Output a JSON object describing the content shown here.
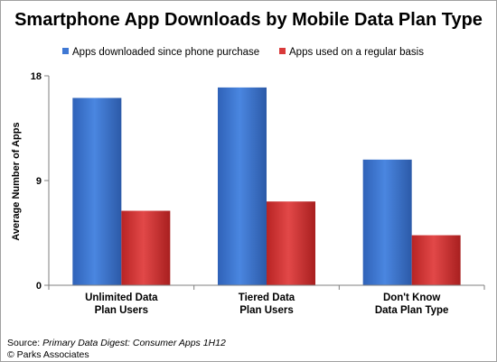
{
  "chart_data": {
    "type": "bar",
    "title": "Smartphone App Downloads by Mobile Data Plan Type",
    "xlabel": "",
    "ylabel": "Average Number of Apps",
    "ylim": [
      0,
      18
    ],
    "yticks": [
      0,
      9,
      18
    ],
    "categories": [
      [
        "Unlimited Data",
        "Plan Users"
      ],
      [
        "Tiered Data",
        "Plan Users"
      ],
      [
        "Don't Know",
        "Data Plan Type"
      ]
    ],
    "series": [
      {
        "name": "Apps downloaded since phone purchase",
        "color": "#3f78d4",
        "values": [
          16.1,
          17.0,
          10.8
        ]
      },
      {
        "name": "Apps used on a regular basis",
        "color": "#d93a3a",
        "values": [
          6.4,
          7.2,
          4.3
        ]
      }
    ],
    "legend_position": "top",
    "grid": false
  },
  "source": {
    "prefix": "Source: ",
    "title": "Primary Data Digest: Consumer Apps 1H12",
    "copyright": "© Parks Associates"
  }
}
